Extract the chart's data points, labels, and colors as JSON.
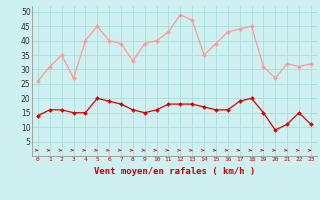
{
  "x": [
    0,
    1,
    2,
    3,
    4,
    5,
    6,
    7,
    8,
    9,
    10,
    11,
    12,
    13,
    14,
    15,
    16,
    17,
    18,
    19,
    20,
    21,
    22,
    23
  ],
  "wind_avg": [
    14,
    16,
    16,
    15,
    15,
    20,
    19,
    18,
    16,
    15,
    16,
    18,
    18,
    18,
    17,
    16,
    16,
    19,
    20,
    15,
    9,
    11,
    15,
    11
  ],
  "wind_gust": [
    26,
    31,
    35,
    27,
    40,
    45,
    40,
    39,
    33,
    39,
    40,
    43,
    49,
    47,
    35,
    39,
    43,
    44,
    45,
    31,
    27,
    32,
    31,
    32
  ],
  "bg_color": "#cef0f0",
  "grid_color": "#aadddd",
  "avg_color": "#dd0000",
  "gust_color": "#ff9999",
  "xlabel": "Vent moyen/en rafales ( km/h )",
  "yticks": [
    5,
    10,
    15,
    20,
    25,
    30,
    35,
    40,
    45,
    50
  ],
  "ymin": 0,
  "ymax": 52,
  "xmin": -0.5,
  "xmax": 23.5
}
